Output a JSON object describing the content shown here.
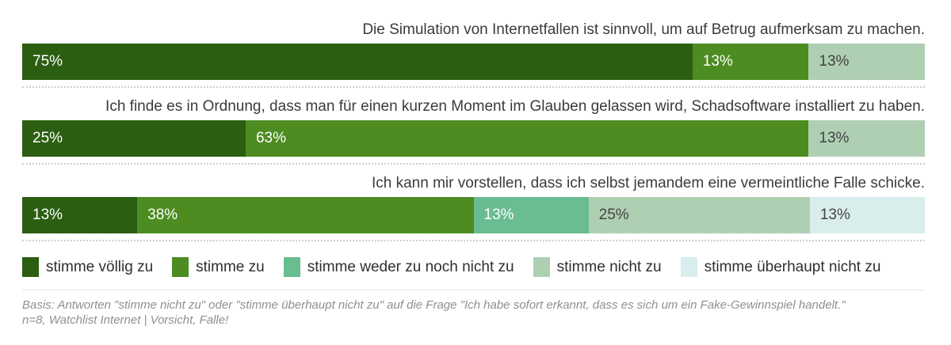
{
  "chart_data": {
    "type": "bar",
    "variant": "horizontal-stacked",
    "unit": "%",
    "legend_position": "bottom",
    "grid": false,
    "legend": [
      {
        "label": "stimme völlig zu",
        "color": "#2b5e11",
        "text_on_color": "light"
      },
      {
        "label": "stimme zu",
        "color": "#4d8c21",
        "text_on_color": "light"
      },
      {
        "label": "stimme weder zu noch nicht zu",
        "color": "#69bd91",
        "text_on_color": "light"
      },
      {
        "label": "stimme nicht zu",
        "color": "#afcfb3",
        "text_on_color": "dark"
      },
      {
        "label": "stimme überhaupt nicht zu",
        "color": "#daeded",
        "text_on_color": "dark"
      }
    ],
    "rows": [
      {
        "question": "Die Simulation von Internetfallen ist sinnvoll, um auf Betrug aufmerksam zu machen.",
        "segments": [
          {
            "label": "75%",
            "value": 75,
            "legend_index": 0
          },
          {
            "label": "13%",
            "value": 13,
            "legend_index": 1
          },
          {
            "label": "13%",
            "value": 13,
            "legend_index": 3
          }
        ]
      },
      {
        "question": "Ich finde es in Ordnung, dass man für einen kurzen Moment im Glauben gelassen wird, Schadsoftware installiert zu haben.",
        "segments": [
          {
            "label": "25%",
            "value": 25,
            "legend_index": 0
          },
          {
            "label": "63%",
            "value": 63,
            "legend_index": 1
          },
          {
            "label": "13%",
            "value": 13,
            "legend_index": 3
          }
        ]
      },
      {
        "question": "Ich kann mir vorstellen, dass ich selbst jemandem eine vermeintliche Falle schicke.",
        "segments": [
          {
            "label": "13%",
            "value": 13,
            "legend_index": 0
          },
          {
            "label": "38%",
            "value": 38,
            "legend_index": 1
          },
          {
            "label": "13%",
            "value": 13,
            "legend_index": 2
          },
          {
            "label": "25%",
            "value": 25,
            "legend_index": 3
          },
          {
            "label": "13%",
            "value": 13,
            "legend_index": 4
          }
        ]
      }
    ],
    "footnote_line1": "Basis: Antworten \"stimme nicht zu\" oder \"stimme überhaupt nicht zu\" auf die Frage \"Ich habe sofort erkannt, dass es sich um ein Fake-Gewinnspiel handelt.\"",
    "footnote_line2": "n=8, Watchlist Internet | Vorsicht, Falle!"
  }
}
